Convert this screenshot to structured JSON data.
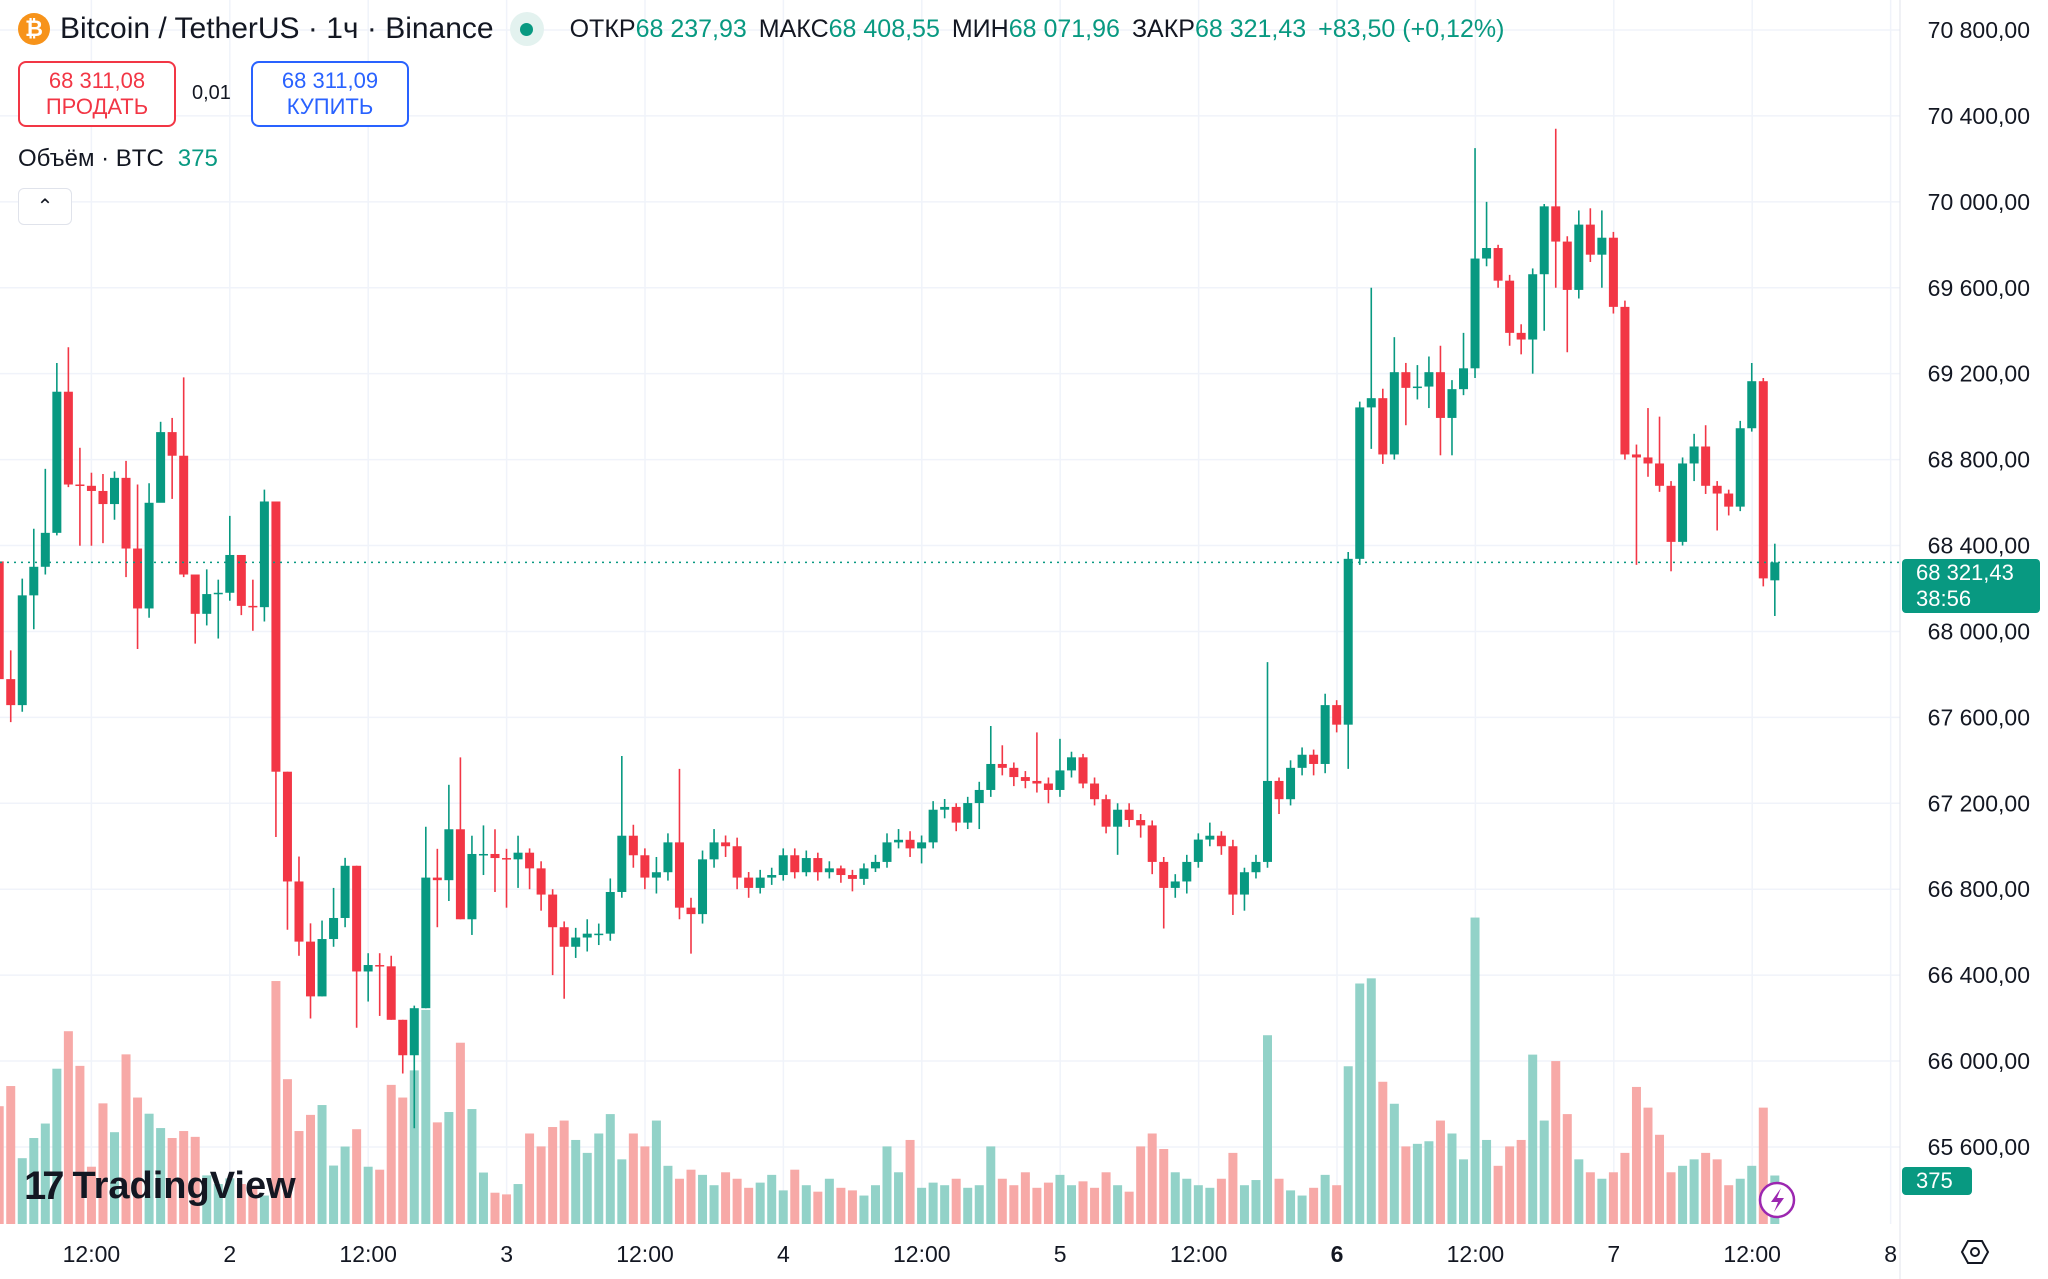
{
  "header": {
    "symbol_title": "Bitcoin / TetherUS · 1ч · Binance",
    "coin_icon": "bitcoin-icon",
    "ohlc": [
      {
        "k": "ОТКР",
        "v": "68 237,93"
      },
      {
        "k": "МАКС",
        "v": "68 408,55"
      },
      {
        "k": "МИН",
        "v": "68 071,96"
      },
      {
        "k": "ЗАКР",
        "v": "68 321,43"
      }
    ],
    "change": "+83,50 (+0,12%)"
  },
  "trade": {
    "sell_price": "68 311,08",
    "sell_label": "ПРОДАТЬ",
    "spread": "0,01",
    "buy_price": "68 311,09",
    "buy_label": "КУПИТЬ"
  },
  "volume_legend": {
    "label": "Объём · BTC",
    "value": "375"
  },
  "collapse_icon": "chevron-up-icon",
  "current_price": {
    "price": "68 321,43",
    "countdown": "38:56",
    "volume": "375"
  },
  "branding": "TradingView",
  "colors": {
    "up": "#089981",
    "down": "#f23645",
    "vol_up": "#92d2c8",
    "vol_down": "#f7a9a7",
    "grid": "#f0f3fa"
  },
  "chart_data": {
    "type": "candlestick",
    "interval": "1h",
    "ylim": [
      65400,
      70900
    ],
    "price_ticks": [
      "70 800,00",
      "70 400,00",
      "70 000,00",
      "69 600,00",
      "69 200,00",
      "68 800,00",
      "68 400,00",
      "68 000,00",
      "67 600,00",
      "67 200,00",
      "66 800,00",
      "66 400,00",
      "66 000,00",
      "65 600,00"
    ],
    "price_tick_values": [
      70800,
      70400,
      70000,
      69600,
      69200,
      68800,
      68400,
      68000,
      67600,
      67200,
      66800,
      66400,
      66000,
      65600
    ],
    "time_ticks": [
      {
        "label": "12:00"
      },
      {
        "label": "2"
      },
      {
        "label": "12:00"
      },
      {
        "label": "3"
      },
      {
        "label": "12:00"
      },
      {
        "label": "4"
      },
      {
        "label": "12:00"
      },
      {
        "label": "5"
      },
      {
        "label": "12:00"
      },
      {
        "label": "6",
        "bold": true
      },
      {
        "label": "12:00"
      },
      {
        "label": "7"
      },
      {
        "label": "12:00"
      },
      {
        "label": "8"
      }
    ],
    "grid": true,
    "last_price": 68321.43,
    "candles_ohlc": [
      [
        68326,
        68360,
        67596,
        67778
      ],
      [
        67778,
        67912,
        67578,
        67657
      ],
      [
        67657,
        68246,
        67626,
        68168
      ],
      [
        68168,
        68478,
        68010,
        68301
      ],
      [
        68301,
        68757,
        68265,
        68459
      ],
      [
        68459,
        69250,
        68447,
        69116
      ],
      [
        69116,
        69323,
        68672,
        68684
      ],
      [
        68684,
        68855,
        68399,
        68678
      ],
      [
        68678,
        68739,
        68399,
        68654
      ],
      [
        68654,
        68733,
        68411,
        68593
      ],
      [
        68593,
        68745,
        68520,
        68715
      ],
      [
        68715,
        68794,
        68253,
        68386
      ],
      [
        68386,
        68684,
        67918,
        68107
      ],
      [
        68107,
        68690,
        68064,
        68599
      ],
      [
        68599,
        68976,
        68751,
        68928
      ],
      [
        68928,
        68994,
        68617,
        68818
      ],
      [
        68818,
        69183,
        68253,
        68265
      ],
      [
        68265,
        68253,
        67943,
        68082
      ],
      [
        68082,
        68289,
        68028,
        68174
      ],
      [
        68174,
        68241,
        67967,
        68180
      ],
      [
        68180,
        68538,
        68143,
        68356
      ],
      [
        68356,
        68356,
        68076,
        68119
      ],
      [
        68119,
        68241,
        68003,
        68113
      ],
      [
        68113,
        68660,
        68046,
        68605
      ],
      [
        68605,
        68605,
        67043,
        67347
      ],
      [
        67347,
        67347,
        66611,
        66836
      ],
      [
        66836,
        66952,
        66490,
        66556
      ],
      [
        66556,
        66641,
        66198,
        66301
      ],
      [
        66301,
        66654,
        66301,
        66568
      ],
      [
        66568,
        66806,
        66532,
        66666
      ],
      [
        66666,
        66946,
        66623,
        66909
      ],
      [
        66909,
        66909,
        66155,
        66417
      ],
      [
        66417,
        66502,
        66277,
        66447
      ],
      [
        66447,
        66502,
        66210,
        66441
      ],
      [
        66441,
        66490,
        66192,
        66192
      ],
      [
        66192,
        66192,
        65942,
        66027
      ],
      [
        66027,
        66258,
        65687,
        66246
      ],
      [
        66246,
        67091,
        66246,
        66854
      ],
      [
        66854,
        66988,
        66623,
        66842
      ],
      [
        66842,
        67286,
        66745,
        67079
      ],
      [
        67079,
        67414,
        66660,
        66660
      ],
      [
        66660,
        67049,
        66587,
        66964
      ],
      [
        66964,
        67097,
        66866,
        66964
      ],
      [
        66964,
        67079,
        66787,
        66945
      ],
      [
        66945,
        66988,
        66714,
        66939
      ],
      [
        66939,
        67049,
        66806,
        66970
      ],
      [
        66970,
        66990,
        66800,
        66897
      ],
      [
        66897,
        66930,
        66700,
        66775
      ],
      [
        66775,
        66800,
        66400,
        66623
      ],
      [
        66623,
        66650,
        66290,
        66532
      ],
      [
        66532,
        66620,
        66480,
        66575
      ],
      [
        66575,
        66660,
        66510,
        66593
      ],
      [
        66593,
        66640,
        66540,
        66593
      ],
      [
        66593,
        66850,
        66560,
        66787
      ],
      [
        66787,
        67420,
        66760,
        67049
      ],
      [
        67049,
        67100,
        66900,
        66958
      ],
      [
        66958,
        66990,
        66800,
        66854
      ],
      [
        66854,
        66950,
        66780,
        66879
      ],
      [
        66879,
        67060,
        66840,
        67018
      ],
      [
        67018,
        67360,
        66660,
        66714
      ],
      [
        66714,
        66760,
        66500,
        66684
      ],
      [
        66684,
        66980,
        66640,
        66939
      ],
      [
        66939,
        67080,
        66900,
        67018
      ],
      [
        67018,
        67050,
        66950,
        67000
      ],
      [
        67000,
        67040,
        66800,
        66854
      ],
      [
        66854,
        66880,
        66760,
        66806
      ],
      [
        66806,
        66890,
        66780,
        66854
      ],
      [
        66854,
        66900,
        66820,
        66866
      ],
      [
        66866,
        66990,
        66840,
        66958
      ],
      [
        66958,
        66990,
        66850,
        66879
      ],
      [
        66879,
        66980,
        66860,
        66945
      ],
      [
        66945,
        66970,
        66840,
        66879
      ],
      [
        66879,
        66930,
        66850,
        66897
      ],
      [
        66897,
        66910,
        66830,
        66866
      ],
      [
        66866,
        66890,
        66790,
        66848
      ],
      [
        66848,
        66920,
        66820,
        66897
      ],
      [
        66897,
        66960,
        66880,
        66927
      ],
      [
        66927,
        67060,
        66900,
        67018
      ],
      [
        67018,
        67080,
        66990,
        67030
      ],
      [
        67030,
        67070,
        66950,
        66990
      ],
      [
        66990,
        67050,
        66920,
        67018
      ],
      [
        67018,
        67210,
        66990,
        67170
      ],
      [
        67170,
        67220,
        67130,
        67183
      ],
      [
        67183,
        67200,
        67070,
        67110
      ],
      [
        67110,
        67230,
        67080,
        67201
      ],
      [
        67201,
        67300,
        67080,
        67262
      ],
      [
        67262,
        67560,
        67230,
        67383
      ],
      [
        67383,
        67470,
        67330,
        67365
      ],
      [
        67365,
        67390,
        67280,
        67322
      ],
      [
        67322,
        67350,
        67270,
        67304
      ],
      [
        67304,
        67530,
        67250,
        67292
      ],
      [
        67292,
        67320,
        67200,
        67262
      ],
      [
        67262,
        67500,
        67230,
        67353
      ],
      [
        67353,
        67440,
        67320,
        67414
      ],
      [
        67414,
        67430,
        67270,
        67292
      ],
      [
        67292,
        67320,
        67190,
        67219
      ],
      [
        67219,
        67240,
        67060,
        67091
      ],
      [
        67091,
        67200,
        66960,
        67170
      ],
      [
        67170,
        67200,
        67090,
        67122
      ],
      [
        67122,
        67150,
        67040,
        67097
      ],
      [
        67097,
        67120,
        66870,
        66927
      ],
      [
        66927,
        66950,
        66617,
        66806
      ],
      [
        66806,
        66870,
        66760,
        66836
      ],
      [
        66836,
        66960,
        66780,
        66927
      ],
      [
        66927,
        67060,
        66900,
        67031
      ],
      [
        67031,
        67110,
        67000,
        67049
      ],
      [
        67049,
        67070,
        66960,
        67000
      ],
      [
        67000,
        67030,
        66680,
        66775
      ],
      [
        66775,
        66900,
        66700,
        66879
      ],
      [
        66879,
        66960,
        66850,
        66927
      ],
      [
        66927,
        67857,
        66900,
        67304
      ],
      [
        67304,
        67320,
        67150,
        67219
      ],
      [
        67219,
        67400,
        67190,
        67365
      ],
      [
        67365,
        67460,
        67330,
        67426
      ],
      [
        67426,
        67450,
        67330,
        67383
      ],
      [
        67383,
        67710,
        67340,
        67657
      ],
      [
        67657,
        67680,
        67530,
        67566
      ],
      [
        67566,
        68370,
        67360,
        68338
      ],
      [
        68338,
        69070,
        68310,
        69043
      ],
      [
        69043,
        69600,
        68850,
        69086
      ],
      [
        69086,
        69130,
        68780,
        68824
      ],
      [
        68824,
        69370,
        68800,
        69207
      ],
      [
        69207,
        69250,
        68960,
        69134
      ],
      [
        69134,
        69240,
        69080,
        69140
      ],
      [
        69140,
        69280,
        69040,
        69207
      ],
      [
        69207,
        69330,
        68820,
        68994
      ],
      [
        68994,
        69170,
        68820,
        69128
      ],
      [
        69128,
        69390,
        69100,
        69225
      ],
      [
        69225,
        70250,
        69180,
        69736
      ],
      [
        69736,
        70000,
        69700,
        69785
      ],
      [
        69785,
        69800,
        69600,
        69633
      ],
      [
        69633,
        69660,
        69330,
        69390
      ],
      [
        69390,
        69430,
        69290,
        69359
      ],
      [
        69359,
        69690,
        69200,
        69663
      ],
      [
        69663,
        69990,
        69400,
        69979
      ],
      [
        69979,
        70340,
        69600,
        69815
      ],
      [
        69815,
        69840,
        69300,
        69590
      ],
      [
        69590,
        69960,
        69550,
        69894
      ],
      [
        69894,
        69970,
        69720,
        69754
      ],
      [
        69754,
        69960,
        69600,
        69833
      ],
      [
        69833,
        69860,
        69480,
        69511
      ],
      [
        69511,
        69540,
        68800,
        68824
      ],
      [
        68824,
        68870,
        68310,
        68810
      ],
      [
        68810,
        69040,
        68720,
        68782
      ],
      [
        68782,
        69000,
        68650,
        68678
      ],
      [
        68678,
        68700,
        68280,
        68417
      ],
      [
        68417,
        68810,
        68400,
        68782
      ],
      [
        68782,
        68920,
        68700,
        68861
      ],
      [
        68861,
        68960,
        68640,
        68678
      ],
      [
        68678,
        68700,
        68470,
        68642
      ],
      [
        68642,
        68660,
        68540,
        68581
      ],
      [
        68581,
        68980,
        68560,
        68946
      ],
      [
        68946,
        69250,
        68930,
        69165
      ],
      [
        69165,
        69180,
        68210,
        68247
      ],
      [
        68237.93,
        68408.55,
        68071.96,
        68321.43
      ]
    ],
    "volumes": [
      911,
      1067,
      509,
      665,
      777,
      1201,
      1491,
      1223,
      443,
      933,
      710,
      1312,
      978,
      853,
      742,
      665,
      719,
      674,
      376,
      309,
      353,
      309,
      287,
      220,
      1879,
      1120,
      719,
      844,
      920,
      452,
      599,
      733,
      443,
      420,
      1076,
      978,
      1188,
      1656,
      786,
      866,
      1402,
      889,
      398,
      242,
      229,
      309,
      700,
      600,
      750,
      800,
      650,
      550,
      700,
      850,
      500,
      700,
      600,
      800,
      450,
      350,
      420,
      380,
      300,
      400,
      350,
      280,
      320,
      380,
      260,
      420,
      300,
      250,
      350,
      280,
      260,
      220,
      300,
      600,
      400,
      650,
      280,
      320,
      300,
      350,
      280,
      300,
      600,
      350,
      300,
      400,
      280,
      320,
      380,
      300,
      330,
      280,
      400,
      300,
      250,
      600,
      700,
      580,
      400,
      350,
      300,
      280,
      350,
      550,
      300,
      340,
      1460,
      350,
      260,
      220,
      280,
      380,
      300,
      1220,
      1860,
      1900,
      1100,
      930,
      600,
      620,
      640,
      800,
      700,
      500,
      2370,
      650,
      450,
      600,
      650,
      1310,
      800,
      1260,
      850,
      500,
      400,
      350,
      400,
      550,
      1060,
      900,
      690,
      400,
      450,
      500,
      550,
      500,
      300,
      350,
      450,
      900,
      375
    ]
  }
}
